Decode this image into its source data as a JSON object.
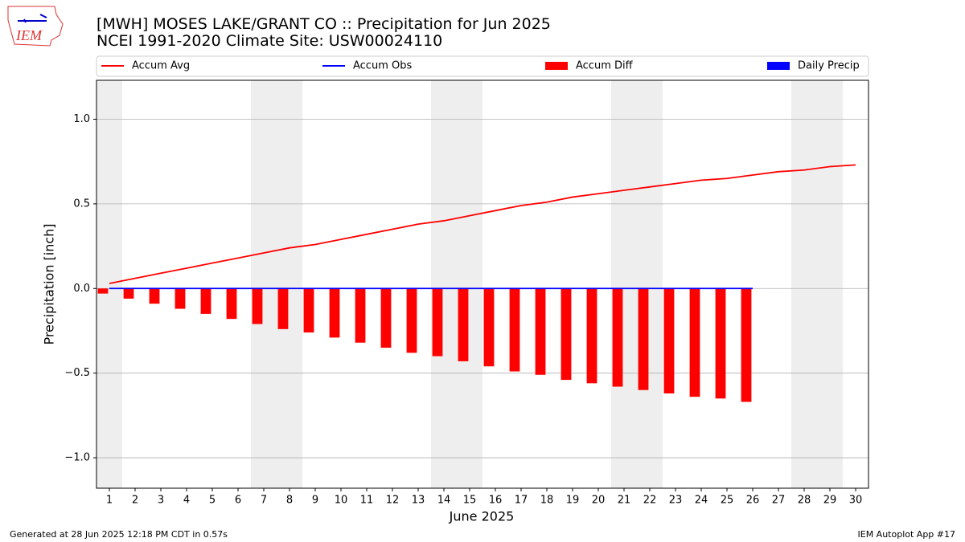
{
  "logo": "IEM",
  "chart_data": {
    "type": "line",
    "title": "[MWH] MOSES LAKE/GRANT CO :: Precipitation for Jun 2025",
    "subtitle": "NCEI 1991-2020 Climate Site: USW00024110",
    "xlabel": "June 2025",
    "ylabel": "Precipitation [inch]",
    "x": [
      1,
      2,
      3,
      4,
      5,
      6,
      7,
      8,
      9,
      10,
      11,
      12,
      13,
      14,
      15,
      16,
      17,
      18,
      19,
      20,
      21,
      22,
      23,
      24,
      25,
      26,
      27,
      28,
      29,
      30
    ],
    "xlim": [
      0.5,
      30.5
    ],
    "xticks": [
      1,
      2,
      3,
      4,
      5,
      6,
      7,
      8,
      9,
      10,
      11,
      12,
      13,
      14,
      15,
      16,
      17,
      18,
      19,
      20,
      21,
      22,
      23,
      24,
      25,
      26,
      27,
      28,
      29,
      30
    ],
    "ylim": [
      -1.18,
      1.23
    ],
    "yticks": [
      {
        "value": -1.0,
        "label": "−1.0"
      },
      {
        "value": -0.5,
        "label": "−0.5"
      },
      {
        "value": 0.0,
        "label": "0.0"
      },
      {
        "value": 0.5,
        "label": "0.5"
      },
      {
        "value": 1.0,
        "label": "1.0"
      }
    ],
    "grid": true,
    "weekend_days": [
      1,
      7,
      8,
      14,
      15,
      21,
      22,
      28,
      29
    ],
    "series": [
      {
        "name": "Accum Avg",
        "color": "#ff0000",
        "style": "line",
        "values": [
          0.03,
          0.06,
          0.09,
          0.12,
          0.15,
          0.18,
          0.21,
          0.24,
          0.26,
          0.29,
          0.32,
          0.35,
          0.38,
          0.4,
          0.43,
          0.46,
          0.49,
          0.51,
          0.54,
          0.56,
          0.58,
          0.6,
          0.62,
          0.64,
          0.65,
          0.67,
          0.69,
          0.7,
          0.72,
          0.73
        ]
      },
      {
        "name": "Accum Obs",
        "color": "#0000ff",
        "style": "line",
        "values": [
          0,
          0,
          0,
          0,
          0,
          0,
          0,
          0,
          0,
          0,
          0,
          0,
          0,
          0,
          0,
          0,
          0,
          0,
          0,
          0,
          0,
          0,
          0,
          0,
          0,
          0,
          null,
          null,
          null,
          null
        ]
      },
      {
        "name": "Accum Diff",
        "color": "#ff0000",
        "style": "bar",
        "offset": "left",
        "values": [
          -0.03,
          -0.06,
          -0.09,
          -0.12,
          -0.15,
          -0.18,
          -0.21,
          -0.24,
          -0.26,
          -0.29,
          -0.32,
          -0.35,
          -0.38,
          -0.4,
          -0.43,
          -0.46,
          -0.49,
          -0.51,
          -0.54,
          -0.56,
          -0.58,
          -0.6,
          -0.62,
          -0.64,
          -0.65,
          -0.67,
          null,
          null,
          null,
          null
        ]
      },
      {
        "name": "Daily Precip",
        "color": "#0000ff",
        "style": "bar",
        "offset": "right",
        "values": [
          0,
          0,
          0,
          0,
          0,
          0,
          0,
          0,
          0,
          0,
          0,
          0,
          0,
          0,
          0,
          0,
          0,
          0,
          0,
          0,
          0,
          0,
          0,
          0,
          0,
          0,
          null,
          null,
          null,
          null
        ]
      }
    ],
    "footer_left": "Generated at 28 Jun 2025 12:18 PM CDT in 0.57s",
    "footer_right": "IEM Autoplot App #17"
  }
}
